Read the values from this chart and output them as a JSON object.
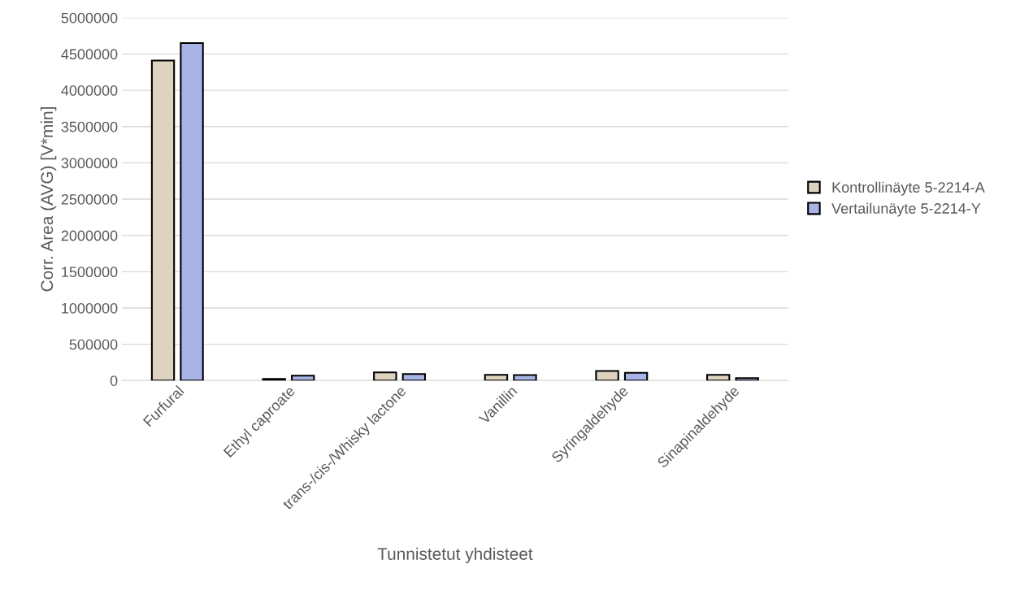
{
  "chart_data": {
    "type": "bar",
    "xlabel": "Tunnistetut yhdisteet",
    "ylabel": "Corr. Area (AVG) [V*min]",
    "categories": [
      "Furfural",
      "Ethyl caproate",
      "trans-/cis-/Whisky lactone",
      "Vanillin",
      "Syringaldehyde",
      "Sinapinaldehyde"
    ],
    "series": [
      {
        "name": "Kontrollinäyte 5-2214-A",
        "color": "#ddd3bf",
        "values": [
          4410000,
          22000,
          112000,
          78000,
          131000,
          78000
        ]
      },
      {
        "name": "Vertailunäyte 5-2214-Y",
        "color": "#a9b4e6",
        "values": [
          4650000,
          67000,
          90000,
          75000,
          107000,
          34000
        ]
      }
    ],
    "ylim": [
      0,
      5000000
    ],
    "yticks": [
      0,
      500000,
      1000000,
      1500000,
      2000000,
      2500000,
      3000000,
      3500000,
      4000000,
      4500000,
      5000000
    ],
    "grid": "y",
    "legend": "right"
  }
}
